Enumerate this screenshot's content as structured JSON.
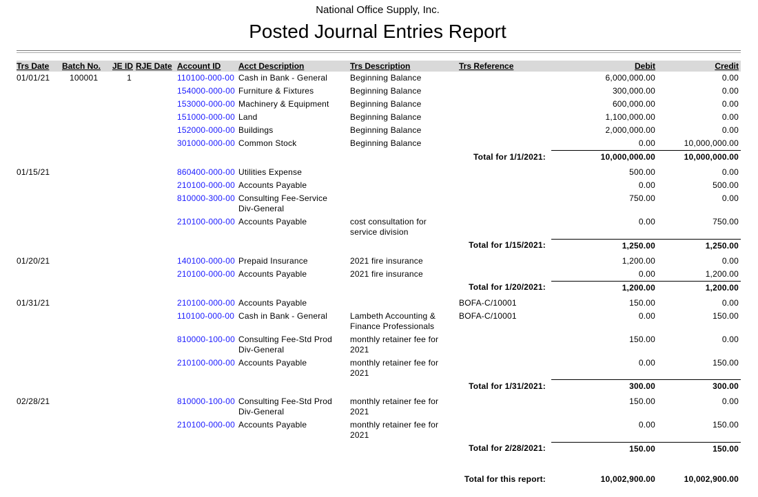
{
  "header": {
    "company": "National Office Supply, Inc.",
    "title": "Posted Journal Entries Report"
  },
  "columns": {
    "trs_date": "Trs Date",
    "batch_no": "Batch No.",
    "je_id": "JE ID",
    "rje_date": "RJE Date",
    "account_id": "Account ID",
    "acct_description": "Acct Description",
    "trs_description": "Trs Description",
    "trs_reference": "Trs Reference",
    "debit": "Debit",
    "credit": "Credit"
  },
  "groups": [
    {
      "date": "01/01/21",
      "batch": "100001",
      "je_id": "1",
      "rje_date": "",
      "lines": [
        {
          "account": "110100-000-00",
          "acct_desc": "Cash in Bank - General",
          "trs_desc": "Beginning Balance",
          "ref": "",
          "debit": "6,000,000.00",
          "credit": "0.00"
        },
        {
          "account": "154000-000-00",
          "acct_desc": "Furniture & Fixtures",
          "trs_desc": "Beginning Balance",
          "ref": "",
          "debit": "300,000.00",
          "credit": "0.00"
        },
        {
          "account": "153000-000-00",
          "acct_desc": "Machinery & Equipment",
          "trs_desc": "Beginning Balance",
          "ref": "",
          "debit": "600,000.00",
          "credit": "0.00"
        },
        {
          "account": "151000-000-00",
          "acct_desc": "Land",
          "trs_desc": "Beginning Balance",
          "ref": "",
          "debit": "1,100,000.00",
          "credit": "0.00"
        },
        {
          "account": "152000-000-00",
          "acct_desc": "Buildings",
          "trs_desc": "Beginning Balance",
          "ref": "",
          "debit": "2,000,000.00",
          "credit": "0.00"
        },
        {
          "account": "301000-000-00",
          "acct_desc": "Common Stock",
          "trs_desc": "Beginning Balance",
          "ref": "",
          "debit": "0.00",
          "credit": "10,000,000.00"
        }
      ],
      "total_label": "Total for 1/1/2021:",
      "total_debit": "10,000,000.00",
      "total_credit": "10,000,000.00"
    },
    {
      "date": "01/15/21",
      "batch": "",
      "je_id": "",
      "rje_date": "",
      "lines": [
        {
          "account": "860400-000-00",
          "acct_desc": "Utilities Expense",
          "trs_desc": "",
          "ref": "",
          "debit": "500.00",
          "credit": "0.00"
        },
        {
          "account": "210100-000-00",
          "acct_desc": "Accounts Payable",
          "trs_desc": "",
          "ref": "",
          "debit": "0.00",
          "credit": "500.00"
        },
        {
          "account": "810000-300-00",
          "acct_desc": "Consulting Fee-Service Div-General",
          "trs_desc": "",
          "ref": "",
          "debit": "750.00",
          "credit": "0.00"
        },
        {
          "account": "210100-000-00",
          "acct_desc": "Accounts Payable",
          "trs_desc": "cost consultation for service division",
          "ref": "",
          "debit": "0.00",
          "credit": "750.00"
        }
      ],
      "total_label": "Total for 1/15/2021:",
      "total_debit": "1,250.00",
      "total_credit": "1,250.00"
    },
    {
      "date": "01/20/21",
      "batch": "",
      "je_id": "",
      "rje_date": "",
      "lines": [
        {
          "account": "140100-000-00",
          "acct_desc": "Prepaid Insurance",
          "trs_desc": "2021 fire insurance",
          "ref": "",
          "debit": "1,200.00",
          "credit": "0.00"
        },
        {
          "account": "210100-000-00",
          "acct_desc": "Accounts Payable",
          "trs_desc": "2021 fire insurance",
          "ref": "",
          "debit": "0.00",
          "credit": "1,200.00"
        }
      ],
      "total_label": "Total for 1/20/2021:",
      "total_debit": "1,200.00",
      "total_credit": "1,200.00"
    },
    {
      "date": "01/31/21",
      "batch": "",
      "je_id": "",
      "rje_date": "",
      "lines": [
        {
          "account": "210100-000-00",
          "acct_desc": "Accounts Payable",
          "trs_desc": "",
          "ref": "BOFA-C/10001",
          "debit": "150.00",
          "credit": "0.00"
        },
        {
          "account": "110100-000-00",
          "acct_desc": "Cash in Bank - General",
          "trs_desc": "Lambeth Accounting & Finance Professionals",
          "ref": "BOFA-C/10001",
          "debit": "0.00",
          "credit": "150.00"
        },
        {
          "account": "810000-100-00",
          "acct_desc": "Consulting Fee-Std Prod Div-General",
          "trs_desc": "monthly retainer fee for 2021",
          "ref": "",
          "debit": "150.00",
          "credit": "0.00"
        },
        {
          "account": "210100-000-00",
          "acct_desc": "Accounts Payable",
          "trs_desc": "monthly retainer fee for 2021",
          "ref": "",
          "debit": "0.00",
          "credit": "150.00"
        }
      ],
      "total_label": "Total for 1/31/2021:",
      "total_debit": "300.00",
      "total_credit": "300.00"
    },
    {
      "date": "02/28/21",
      "batch": "",
      "je_id": "",
      "rje_date": "",
      "lines": [
        {
          "account": "810000-100-00",
          "acct_desc": "Consulting Fee-Std Prod Div-General",
          "trs_desc": "monthly retainer fee for 2021",
          "ref": "",
          "debit": "150.00",
          "credit": "0.00"
        },
        {
          "account": "210100-000-00",
          "acct_desc": "Accounts Payable",
          "trs_desc": "monthly retainer fee for 2021",
          "ref": "",
          "debit": "0.00",
          "credit": "150.00"
        }
      ],
      "total_label": "Total for 2/28/2021:",
      "total_debit": "150.00",
      "total_credit": "150.00"
    }
  ],
  "grand_total": {
    "label": "Total for this report:",
    "debit": "10,002,900.00",
    "credit": "10,002,900.00"
  },
  "colors": {
    "account_link": "#1a1aff",
    "header_band": "#d9d9d9"
  }
}
